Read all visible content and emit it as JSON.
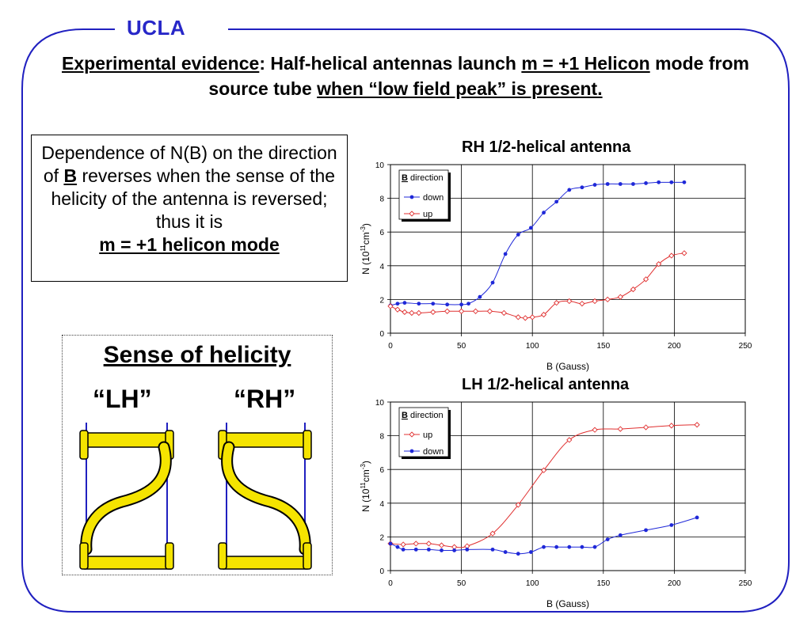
{
  "header": {
    "logo": "UCLA"
  },
  "title": {
    "part1": "Experimental evidence",
    "part2": ": Half-helical antennas launch ",
    "part3": "m = +1 Helicon",
    "part4": " mode from source tube ",
    "part5": "when “low field peak” is present."
  },
  "explanation": {
    "line_a": "Dependence of N(B) on the direction of ",
    "bold_b": "B",
    "line_b": " reverses when the sense of the helicity of the antenna is reversed; thus it is ",
    "conclusion": "m = +1 helicon mode"
  },
  "helicity": {
    "title": "Sense of helicity",
    "left_label": "“LH”",
    "right_label": "“RH”"
  },
  "colors": {
    "down": "#1f28d8",
    "up": "#e03030",
    "antenna": "#f5e400",
    "frame": "#2020c0"
  },
  "chart_data": [
    {
      "type": "line",
      "title": "RH 1/2-helical antenna",
      "xlabel": "B (Gauss)",
      "ylabel_main": "N (10",
      "ylabel_sup1": "11",
      "ylabel_mid": "cm",
      "ylabel_sup2": "-3",
      "ylabel_end": ")",
      "xlim": [
        0,
        250
      ],
      "ylim": [
        0,
        10
      ],
      "xticks": [
        "0",
        "50",
        "100",
        "150",
        "200",
        "250"
      ],
      "yticks": [
        "0",
        "2",
        "4",
        "6",
        "8",
        "10"
      ],
      "legend_title_bold": "B",
      "legend_title_rest": " direction",
      "series": [
        {
          "name": "down",
          "color": "#1f28d8",
          "marker": "dot",
          "x": [
            0,
            5,
            10,
            20,
            30,
            40,
            50,
            55,
            63,
            72,
            81,
            90,
            99,
            108,
            117,
            126,
            135,
            144,
            153,
            162,
            171,
            180,
            189,
            198,
            207
          ],
          "y": [
            1.65,
            1.75,
            1.8,
            1.75,
            1.75,
            1.7,
            1.7,
            1.75,
            2.15,
            3.0,
            4.7,
            5.85,
            6.25,
            7.15,
            7.8,
            8.5,
            8.65,
            8.8,
            8.85,
            8.85,
            8.85,
            8.9,
            8.95,
            8.95,
            8.95
          ]
        },
        {
          "name": "up",
          "color": "#e03030",
          "marker": "diamond",
          "x": [
            0,
            5,
            10,
            15,
            20,
            30,
            40,
            50,
            60,
            70,
            80,
            90,
            95,
            100,
            108,
            117,
            126,
            135,
            144,
            153,
            162,
            171,
            180,
            189,
            198,
            207
          ],
          "y": [
            1.6,
            1.4,
            1.25,
            1.2,
            1.2,
            1.25,
            1.3,
            1.3,
            1.3,
            1.3,
            1.2,
            0.95,
            0.9,
            0.95,
            1.1,
            1.8,
            1.9,
            1.75,
            1.9,
            2.0,
            2.15,
            2.6,
            3.2,
            4.1,
            4.6,
            4.75
          ]
        }
      ],
      "legend_order": [
        "down",
        "up"
      ]
    },
    {
      "type": "line",
      "title": "LH 1/2-helical antenna",
      "xlabel": "B (Gauss)",
      "ylabel_main": "N (10",
      "ylabel_sup1": "11",
      "ylabel_mid": "cm",
      "ylabel_sup2": "-3",
      "ylabel_end": ")",
      "xlim": [
        0,
        250
      ],
      "ylim": [
        0,
        10
      ],
      "xticks": [
        "0",
        "50",
        "100",
        "150",
        "200",
        "250"
      ],
      "yticks": [
        "0",
        "2",
        "4",
        "6",
        "8",
        "10"
      ],
      "legend_title_bold": "B",
      "legend_title_rest": " direction",
      "series": [
        {
          "name": "up",
          "color": "#e03030",
          "marker": "diamond",
          "x": [
            0,
            9,
            18,
            27,
            36,
            45,
            54,
            72,
            90,
            108,
            126,
            144,
            162,
            180,
            198,
            216
          ],
          "y": [
            1.6,
            1.55,
            1.6,
            1.6,
            1.5,
            1.4,
            1.45,
            2.2,
            3.9,
            5.95,
            7.75,
            8.35,
            8.4,
            8.5,
            8.6,
            8.65
          ]
        },
        {
          "name": "down",
          "color": "#1f28d8",
          "marker": "dot",
          "x": [
            0,
            5,
            9,
            18,
            27,
            36,
            45,
            54,
            72,
            81,
            90,
            99,
            108,
            117,
            126,
            135,
            144,
            153,
            162,
            180,
            198,
            216
          ],
          "y": [
            1.6,
            1.4,
            1.25,
            1.25,
            1.25,
            1.2,
            1.2,
            1.25,
            1.25,
            1.1,
            1.0,
            1.1,
            1.4,
            1.4,
            1.4,
            1.4,
            1.4,
            1.85,
            2.1,
            2.4,
            2.7,
            3.15
          ]
        }
      ],
      "legend_order": [
        "up",
        "down"
      ]
    }
  ]
}
